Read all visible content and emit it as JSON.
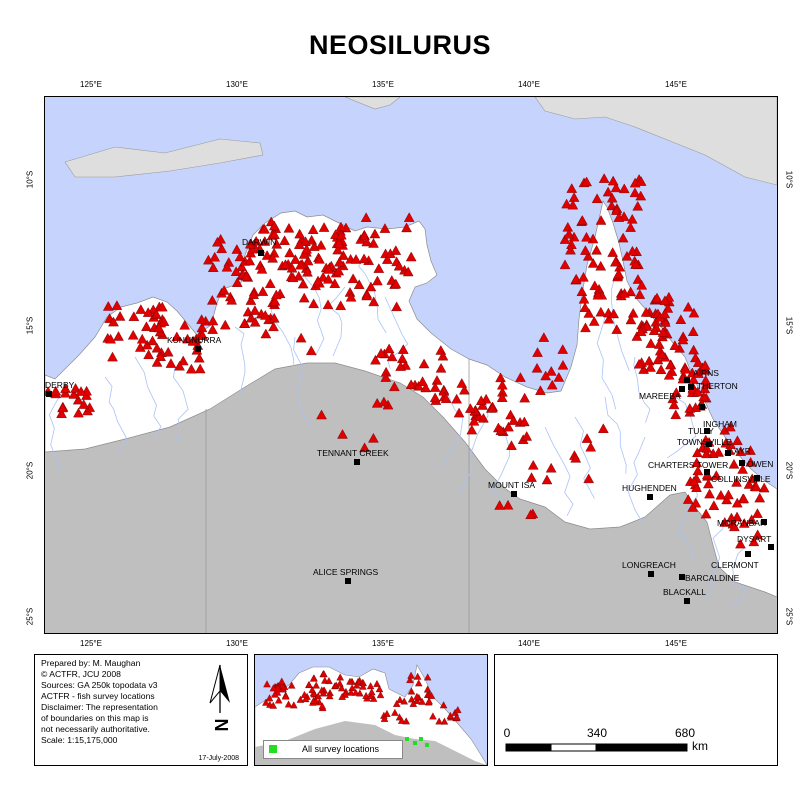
{
  "title": "NEOSILURUS",
  "colors": {
    "ocean": "#c6d4fd",
    "land": "#ffffff",
    "land_outside": "#bfbfbf",
    "neighbour_land": "#dedede",
    "river": "#a9c3f7",
    "border": "#9a9a9a",
    "marker": "#e10000",
    "town": "#000000",
    "survey_location": "#22dd22"
  },
  "graticule": {
    "longitude_labels": [
      "125°E",
      "130°E",
      "135°E",
      "140°E",
      "145°E"
    ],
    "latitude_labels": [
      "10°S",
      "15°S",
      "20°S",
      "25°S"
    ]
  },
  "towns": [
    {
      "name": "DARWIN"
    },
    {
      "name": "KUNUNURRA"
    },
    {
      "name": "DERBY"
    },
    {
      "name": "TENNANT CREEK"
    },
    {
      "name": "ALICE SPRINGS"
    },
    {
      "name": "MOUNT ISA"
    },
    {
      "name": "CAIRNS",
      "label": "AIRNS"
    },
    {
      "name": "ATHERTON",
      "label": "THERTON"
    },
    {
      "name": "MAREEBA",
      "label": "MAREEBA"
    },
    {
      "name": "TULLY",
      "label": "TULLY"
    },
    {
      "name": "INGHAM",
      "label": "INGHAM"
    },
    {
      "name": "TOWNSVILLE"
    },
    {
      "name": "AYR"
    },
    {
      "name": "BOWEN",
      "label": "OWEN"
    },
    {
      "name": "CHARTERS TOWERS",
      "label": "CHARTERS TOWER"
    },
    {
      "name": "COLLINSVILLE"
    },
    {
      "name": "HUGHENDEN"
    },
    {
      "name": "MORANBAH",
      "label": "MORANBAH"
    },
    {
      "name": "DYSART"
    },
    {
      "name": "LONGREACH"
    },
    {
      "name": "CLERMONT"
    },
    {
      "name": "BARCALDINE"
    },
    {
      "name": "BLACKALL"
    }
  ],
  "prepared_by": {
    "lines": [
      "Prepared by: M. Maughan",
      "© ACTFR, JCU 2008",
      "Sources: GA 250k topodata v3",
      "ACTFR - fish survey locations",
      "Disclaimer: The representation",
      "of boundaries on this map is",
      "not necessarily authoritative.",
      "Scale: 1:15,175,000"
    ],
    "date": "17-July-2008",
    "north_arrow_icon": "north-arrow-icon",
    "north_label": "N"
  },
  "inset": {
    "legend_label": "All survey locations"
  },
  "scale_bar": {
    "labels": [
      "0",
      "340",
      "680"
    ],
    "unit": "km"
  }
}
